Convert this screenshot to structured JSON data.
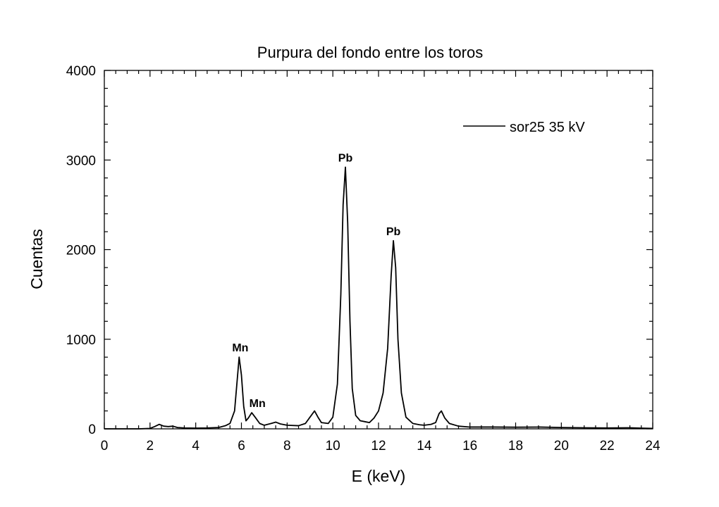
{
  "chart_data": {
    "type": "line",
    "title": "Purpura del fondo entre los toros",
    "xlabel": "E (keV)",
    "ylabel": "Cuentas",
    "xlim": [
      0,
      24
    ],
    "ylim": [
      0,
      4000
    ],
    "x_ticks": [
      0,
      2,
      4,
      6,
      8,
      10,
      12,
      14,
      16,
      18,
      20,
      22,
      24
    ],
    "y_ticks": [
      0,
      1000,
      2000,
      3000,
      4000
    ],
    "x_tick_labels": [
      "0",
      "2",
      "4",
      "6",
      "8",
      "10",
      "12",
      "14",
      "16",
      "18",
      "20",
      "22",
      "24"
    ],
    "y_tick_labels": [
      "0",
      "1000",
      "2000",
      "3000",
      "4000"
    ],
    "grid": false,
    "legend_position": "top-right",
    "series": [
      {
        "name": "sor25 35 kV",
        "color": "#000000",
        "points": [
          [
            0.0,
            0
          ],
          [
            1.5,
            0
          ],
          [
            2.0,
            5
          ],
          [
            2.2,
            25
          ],
          [
            2.4,
            50
          ],
          [
            2.6,
            30
          ],
          [
            2.8,
            25
          ],
          [
            3.0,
            30
          ],
          [
            3.2,
            15
          ],
          [
            3.5,
            10
          ],
          [
            4.0,
            8
          ],
          [
            4.5,
            10
          ],
          [
            5.0,
            15
          ],
          [
            5.3,
            35
          ],
          [
            5.5,
            60
          ],
          [
            5.7,
            200
          ],
          [
            5.8,
            500
          ],
          [
            5.9,
            800
          ],
          [
            6.0,
            600
          ],
          [
            6.1,
            250
          ],
          [
            6.2,
            90
          ],
          [
            6.3,
            120
          ],
          [
            6.45,
            180
          ],
          [
            6.6,
            130
          ],
          [
            6.8,
            60
          ],
          [
            7.0,
            40
          ],
          [
            7.3,
            60
          ],
          [
            7.5,
            75
          ],
          [
            7.7,
            55
          ],
          [
            8.0,
            40
          ],
          [
            8.5,
            35
          ],
          [
            8.8,
            60
          ],
          [
            9.0,
            130
          ],
          [
            9.2,
            200
          ],
          [
            9.35,
            130
          ],
          [
            9.5,
            70
          ],
          [
            9.8,
            60
          ],
          [
            10.0,
            130
          ],
          [
            10.2,
            500
          ],
          [
            10.35,
            1500
          ],
          [
            10.45,
            2500
          ],
          [
            10.55,
            2920
          ],
          [
            10.65,
            2300
          ],
          [
            10.75,
            1200
          ],
          [
            10.85,
            450
          ],
          [
            11.0,
            150
          ],
          [
            11.2,
            90
          ],
          [
            11.4,
            80
          ],
          [
            11.6,
            70
          ],
          [
            11.8,
            120
          ],
          [
            12.0,
            200
          ],
          [
            12.2,
            400
          ],
          [
            12.4,
            900
          ],
          [
            12.55,
            1700
          ],
          [
            12.65,
            2100
          ],
          [
            12.75,
            1800
          ],
          [
            12.85,
            1000
          ],
          [
            13.0,
            400
          ],
          [
            13.2,
            130
          ],
          [
            13.5,
            60
          ],
          [
            13.8,
            45
          ],
          [
            14.0,
            40
          ],
          [
            14.3,
            50
          ],
          [
            14.5,
            70
          ],
          [
            14.65,
            170
          ],
          [
            14.75,
            200
          ],
          [
            14.9,
            120
          ],
          [
            15.1,
            60
          ],
          [
            15.5,
            30
          ],
          [
            16.0,
            20
          ],
          [
            17.0,
            20
          ],
          [
            18.0,
            18
          ],
          [
            19.0,
            20
          ],
          [
            20.0,
            15
          ],
          [
            21.0,
            12
          ],
          [
            22.0,
            10
          ],
          [
            23.0,
            12
          ],
          [
            23.5,
            8
          ],
          [
            24.0,
            5
          ]
        ]
      }
    ],
    "annotations": [
      {
        "text": "Mn",
        "x": 5.95,
        "y": 800
      },
      {
        "text": "Mn",
        "x": 6.7,
        "y": 180
      },
      {
        "text": "Pb",
        "x": 10.55,
        "y": 2920
      },
      {
        "text": "Pb",
        "x": 12.65,
        "y": 2100
      }
    ]
  }
}
